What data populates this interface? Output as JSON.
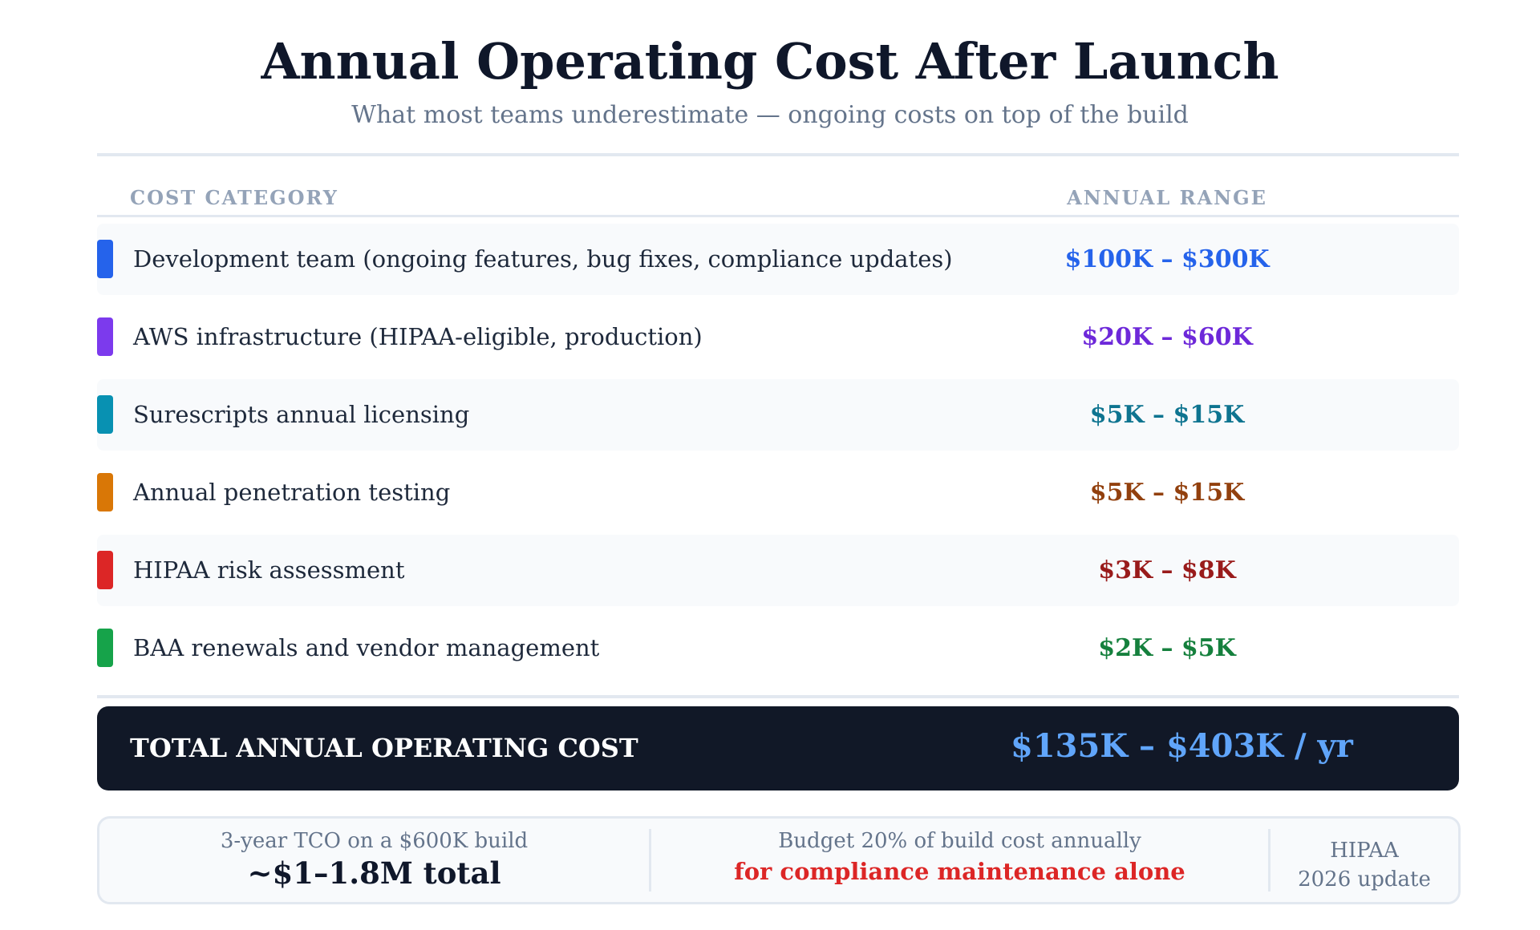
{
  "header": {
    "title": "Annual Operating Cost After Launch",
    "subtitle": "What most teams underestimate — ongoing costs on top of the build"
  },
  "table": {
    "columns": [
      "COST CATEGORY",
      "ANNUAL RANGE"
    ],
    "rows": [
      {
        "label": "Development team (ongoing features, bug fixes, compliance updates)",
        "range": "$100K – $300K",
        "chip_color": "#2563eb",
        "range_color": "#2563eb"
      },
      {
        "label": "AWS infrastructure (HIPAA-eligible, production)",
        "range": "$20K – $60K",
        "chip_color": "#7c3aed",
        "range_color": "#6d28d9"
      },
      {
        "label": "Surescripts annual licensing",
        "range": "$5K – $15K",
        "chip_color": "#0891b2",
        "range_color": "#0e7490"
      },
      {
        "label": "Annual penetration testing",
        "range": "$5K – $15K",
        "chip_color": "#d97706",
        "range_color": "#92400e"
      },
      {
        "label": "HIPAA risk assessment",
        "range": "$3K – $8K",
        "chip_color": "#dc2626",
        "range_color": "#991b1b"
      },
      {
        "label": "BAA renewals and vendor management",
        "range": "$2K – $5K",
        "chip_color": "#16a34a",
        "range_color": "#15803d"
      }
    ]
  },
  "total": {
    "label": "TOTAL ANNUAL OPERATING COST",
    "value": "$135K – $403K / yr"
  },
  "footer": {
    "tco_caption": "3-year TCO on a $600K build",
    "tco_value": "~$1–1.8M total",
    "budget_caption": "Budget 20% of build cost annually",
    "budget_note": "for compliance maintenance alone",
    "hipaa_line1": "HIPAA",
    "hipaa_line2": "2026 update"
  },
  "colors": {
    "total_bg": "#111827",
    "total_value": "#60a5fa",
    "alert": "#dc2626"
  }
}
